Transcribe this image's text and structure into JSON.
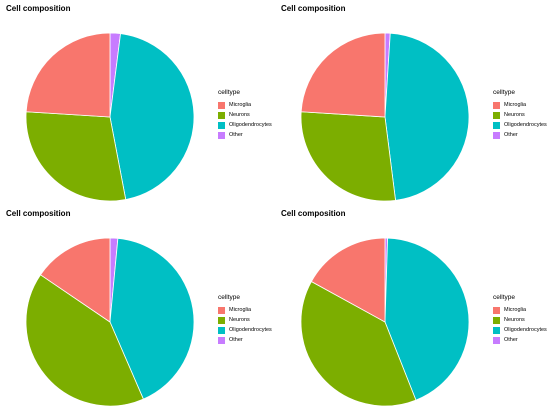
{
  "legend_title": "celltype",
  "categories": [
    "Microglia",
    "Neurons",
    "Oligodendrocytes",
    "Other"
  ],
  "colors": {
    "Microglia": "#F8766D",
    "Neurons": "#7CAE00",
    "Oligodendrocytes": "#00BFC4",
    "Other": "#C77CFF"
  },
  "chart_data": [
    {
      "type": "pie",
      "title": "Cell composition",
      "slices": [
        {
          "label": "Other",
          "value": 0.02
        },
        {
          "label": "Oligodendrocytes",
          "value": 0.45
        },
        {
          "label": "Neurons",
          "value": 0.29
        },
        {
          "label": "Microglia",
          "value": 0.24
        }
      ]
    },
    {
      "type": "pie",
      "title": "Cell composition",
      "slices": [
        {
          "label": "Other",
          "value": 0.01
        },
        {
          "label": "Oligodendrocytes",
          "value": 0.47
        },
        {
          "label": "Neurons",
          "value": 0.28
        },
        {
          "label": "Microglia",
          "value": 0.24
        }
      ]
    },
    {
      "type": "pie",
      "title": "Cell composition",
      "slices": [
        {
          "label": "Other",
          "value": 0.015
        },
        {
          "label": "Oligodendrocytes",
          "value": 0.42
        },
        {
          "label": "Neurons",
          "value": 0.41
        },
        {
          "label": "Microglia",
          "value": 0.155
        }
      ]
    },
    {
      "type": "pie",
      "title": "Cell composition",
      "slices": [
        {
          "label": "Other",
          "value": 0.005
        },
        {
          "label": "Oligodendrocytes",
          "value": 0.435
        },
        {
          "label": "Neurons",
          "value": 0.39
        },
        {
          "label": "Microglia",
          "value": 0.17
        }
      ]
    }
  ]
}
